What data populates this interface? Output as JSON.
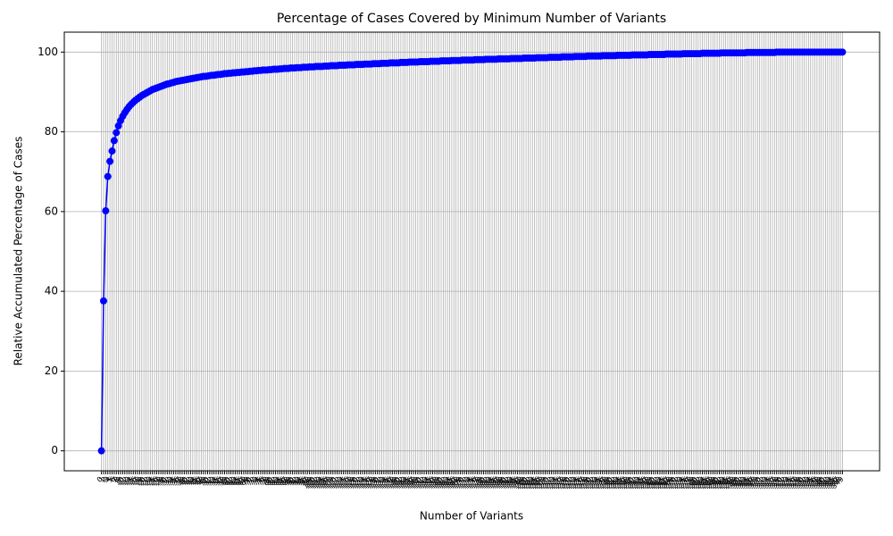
{
  "chart_data": {
    "type": "line",
    "title": "Percentage of Cases Covered by Minimum Number of Variants",
    "x_label": "Number of Variants",
    "y_label": "Relative Accumulated Percentage of Cases",
    "xlim": [
      -17.5,
      366.5
    ],
    "ylim": [
      -5,
      105
    ],
    "yticks": [
      0,
      20,
      40,
      60,
      80,
      100
    ],
    "grid": true,
    "x": [
      0,
      1,
      2,
      3,
      4,
      5,
      6,
      7,
      8,
      9,
      10,
      11,
      12,
      13,
      14,
      15,
      16,
      17,
      18,
      19,
      20,
      21,
      22,
      23,
      24,
      25,
      26,
      27,
      28,
      29,
      30,
      31,
      32,
      33,
      34,
      35,
      36,
      37,
      38,
      39,
      40,
      41,
      42,
      43,
      44,
      45,
      46,
      47,
      48,
      49,
      50,
      51,
      52,
      53,
      54,
      55,
      56,
      57,
      58,
      59,
      60,
      61,
      62,
      63,
      64,
      65,
      66,
      67,
      68,
      69,
      70,
      71,
      72,
      73,
      74,
      75,
      76,
      77,
      78,
      79,
      80,
      81,
      82,
      83,
      84,
      85,
      86,
      87,
      88,
      89,
      90,
      91,
      92,
      93,
      94,
      95,
      96,
      97,
      98,
      99,
      100,
      101,
      102,
      103,
      104,
      105,
      106,
      107,
      108,
      109,
      110,
      111,
      112,
      113,
      114,
      115,
      116,
      117,
      118,
      119,
      120,
      121,
      122,
      123,
      124,
      125,
      126,
      127,
      128,
      129,
      130,
      131,
      132,
      133,
      134,
      135,
      136,
      137,
      138,
      139,
      140,
      141,
      142,
      143,
      144,
      145,
      146,
      147,
      148,
      149,
      150,
      151,
      152,
      153,
      154,
      155,
      156,
      157,
      158,
      159,
      160,
      161,
      162,
      163,
      164,
      165,
      166,
      167,
      168,
      169,
      170,
      171,
      172,
      173,
      174,
      175,
      176,
      177,
      178,
      179,
      180,
      181,
      182,
      183,
      184,
      185,
      186,
      187,
      188,
      189,
      190,
      191,
      192,
      193,
      194,
      195,
      196,
      197,
      198,
      199,
      200,
      201,
      202,
      203,
      204,
      205,
      206,
      207,
      208,
      209,
      210,
      211,
      212,
      213,
      214,
      215,
      216,
      217,
      218,
      219,
      220,
      221,
      222,
      223,
      224,
      225,
      226,
      227,
      228,
      229,
      230,
      231,
      232,
      233,
      234,
      235,
      236,
      237,
      238,
      239,
      240,
      241,
      242,
      243,
      244,
      245,
      246,
      247,
      248,
      249,
      250,
      251,
      252,
      253,
      254,
      255,
      256,
      257,
      258,
      259,
      260,
      261,
      262,
      263,
      264,
      265,
      266,
      267,
      268,
      269,
      270,
      271,
      272,
      273,
      274,
      275,
      276,
      277,
      278,
      279,
      280,
      281,
      282,
      283,
      284,
      285,
      286,
      287,
      288,
      289,
      290,
      291,
      292,
      293,
      294,
      295,
      296,
      297,
      298,
      299,
      300,
      301,
      302,
      303,
      304,
      305,
      306,
      307,
      308,
      309,
      310,
      311,
      312,
      313,
      314,
      315,
      316,
      317,
      318,
      319,
      320,
      321,
      322,
      323,
      324,
      325,
      326,
      327,
      328,
      329,
      330,
      331,
      332,
      333,
      334,
      335,
      336,
      337,
      338,
      339,
      340,
      341,
      342,
      343,
      344,
      345,
      346,
      347,
      348,
      349
    ],
    "series": [
      {
        "color": "#0000ff",
        "values": [
          0,
          37.6,
          60.2,
          68.8,
          72.6,
          75.2,
          77.8,
          79.8,
          81.5,
          82.8,
          83.9,
          84.8,
          85.6,
          86.3,
          86.9,
          87.4,
          87.9,
          88.3,
          88.7,
          89.1,
          89.4,
          89.7,
          90.0,
          90.3,
          90.6,
          90.8,
          91.0,
          91.2,
          91.4,
          91.6,
          91.8,
          92.0,
          92.1,
          92.3,
          92.4,
          92.6,
          92.7,
          92.8,
          92.9,
          93.0,
          93.1,
          93.2,
          93.3,
          93.4,
          93.5,
          93.6,
          93.7,
          93.8,
          93.9,
          93.9,
          94.0,
          94.1,
          94.2,
          94.2,
          94.3,
          94.4,
          94.4,
          94.5,
          94.6,
          94.6,
          94.7,
          94.7,
          94.8,
          94.8,
          94.9,
          94.9,
          95.0,
          95.0,
          95.1,
          95.1,
          95.2,
          95.2,
          95.3,
          95.3,
          95.4,
          95.4,
          95.5,
          95.5,
          95.5,
          95.6,
          95.6,
          95.7,
          95.7,
          95.7,
          95.8,
          95.8,
          95.9,
          95.9,
          95.9,
          96.0,
          96.0,
          96.0,
          96.1,
          96.1,
          96.1,
          96.2,
          96.2,
          96.2,
          96.3,
          96.3,
          96.3,
          96.4,
          96.4,
          96.4,
          96.4,
          96.5,
          96.5,
          96.5,
          96.6,
          96.6,
          96.6,
          96.6,
          96.7,
          96.7,
          96.7,
          96.7,
          96.8,
          96.8,
          96.8,
          96.8,
          96.9,
          96.9,
          96.9,
          96.9,
          97.0,
          97.0,
          97.0,
          97.0,
          97.1,
          97.1,
          97.1,
          97.1,
          97.2,
          97.2,
          97.2,
          97.2,
          97.3,
          97.3,
          97.3,
          97.3,
          97.3,
          97.4,
          97.4,
          97.4,
          97.4,
          97.5,
          97.5,
          97.5,
          97.5,
          97.5,
          97.6,
          97.6,
          97.6,
          97.6,
          97.6,
          97.7,
          97.7,
          97.7,
          97.7,
          97.7,
          97.8,
          97.8,
          97.8,
          97.8,
          97.8,
          97.9,
          97.9,
          97.9,
          97.9,
          97.9,
          98.0,
          98.0,
          98.0,
          98.0,
          98.0,
          98.0,
          98.1,
          98.1,
          98.1,
          98.1,
          98.1,
          98.2,
          98.2,
          98.2,
          98.2,
          98.2,
          98.2,
          98.3,
          98.3,
          98.3,
          98.3,
          98.3,
          98.3,
          98.4,
          98.4,
          98.4,
          98.4,
          98.4,
          98.4,
          98.5,
          98.5,
          98.5,
          98.5,
          98.5,
          98.5,
          98.6,
          98.6,
          98.6,
          98.6,
          98.6,
          98.6,
          98.7,
          98.7,
          98.7,
          98.7,
          98.7,
          98.7,
          98.8,
          98.8,
          98.8,
          98.8,
          98.8,
          98.8,
          98.9,
          98.9,
          98.9,
          98.9,
          98.9,
          98.9,
          99.0,
          99.0,
          99.0,
          99.0,
          99.0,
          99.0,
          99.0,
          99.1,
          99.1,
          99.1,
          99.1,
          99.1,
          99.1,
          99.1,
          99.2,
          99.2,
          99.2,
          99.2,
          99.2,
          99.2,
          99.2,
          99.3,
          99.3,
          99.3,
          99.3,
          99.3,
          99.3,
          99.3,
          99.3,
          99.4,
          99.4,
          99.4,
          99.4,
          99.4,
          99.4,
          99.4,
          99.4,
          99.5,
          99.5,
          99.5,
          99.5,
          99.5,
          99.5,
          99.5,
          99.5,
          99.6,
          99.6,
          99.6,
          99.6,
          99.6,
          99.6,
          99.6,
          99.6,
          99.6,
          99.7,
          99.7,
          99.7,
          99.7,
          99.7,
          99.7,
          99.7,
          99.7,
          99.7,
          99.8,
          99.8,
          99.8,
          99.8,
          99.8,
          99.8,
          99.8,
          99.8,
          99.8,
          99.8,
          99.8,
          99.8,
          99.9,
          99.9,
          99.9,
          99.9,
          99.9,
          99.9,
          99.9,
          99.9,
          99.9,
          99.9,
          99.9,
          99.9,
          99.9,
          99.9,
          100,
          100,
          100,
          100,
          100,
          100,
          100,
          100,
          100,
          100,
          100,
          100,
          100,
          100,
          100,
          100,
          100,
          100,
          100,
          100,
          100,
          100,
          100,
          100,
          100,
          100,
          100,
          100,
          100,
          100,
          100,
          100
        ]
      }
    ]
  }
}
